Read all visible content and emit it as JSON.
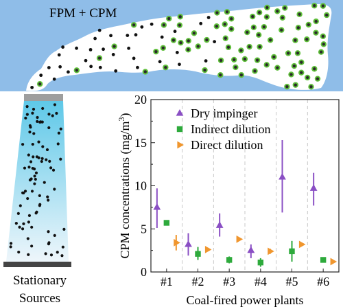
{
  "illustration": {
    "plume_label": "FPM + CPM",
    "source_label_line1": "Stationary",
    "source_label_line2": "Sources",
    "colors": {
      "sky": "#8fbde8",
      "plume": "#ffffff",
      "fpm_dot": "#111111",
      "cpm_dot_fill": "#2a2a2a",
      "cpm_dot_ring": "#5fbf3a",
      "stack_top": "#5ec8e8",
      "stack_bottom": "#eef6fb",
      "stack_cap": "#9e9e9e",
      "stack_base": "#444444"
    }
  },
  "chart_data": {
    "type": "scatter",
    "xlabel": "Coal-fired power plants",
    "ylabel_prefix": "CPM concentrations (mg/m",
    "ylabel_sup": "3",
    "ylabel_suffix": ")",
    "categories": [
      "#1",
      "#2",
      "#3",
      "#4",
      "#5",
      "#6"
    ],
    "ylim": [
      0,
      20
    ],
    "yticks": [
      0,
      5,
      10,
      15,
      20
    ],
    "grid": false,
    "category_separators": "dashed",
    "legend_position": "top-right",
    "series": [
      {
        "name": "Dry impinger",
        "marker": "triangle-up",
        "color": "#8a4fc4",
        "values": [
          7.5,
          3.2,
          5.4,
          2.5,
          11.0,
          9.7
        ],
        "error_low": [
          5.1,
          1.9,
          4.1,
          1.6,
          6.9,
          7.7
        ],
        "error_high": [
          9.7,
          4.5,
          6.8,
          3.2,
          15.3,
          11.5
        ]
      },
      {
        "name": "Indirect dilution",
        "marker": "square",
        "color": "#2eaa3c",
        "values": [
          5.7,
          2.1,
          1.4,
          1.1,
          2.4,
          1.4
        ],
        "error_low": [
          5.7,
          1.4,
          1.0,
          0.6,
          1.2,
          1.4
        ],
        "error_high": [
          5.7,
          2.9,
          1.8,
          1.6,
          3.6,
          1.4
        ]
      },
      {
        "name": "Direct dilution",
        "marker": "triangle-right",
        "color": "#f0962e",
        "values": [
          3.4,
          2.6,
          3.8,
          2.4,
          3.2,
          1.2
        ],
        "error_low": [
          2.5,
          2.6,
          3.8,
          2.1,
          3.2,
          1.2
        ],
        "error_high": [
          4.3,
          2.6,
          3.8,
          2.7,
          3.2,
          1.2
        ]
      }
    ]
  }
}
